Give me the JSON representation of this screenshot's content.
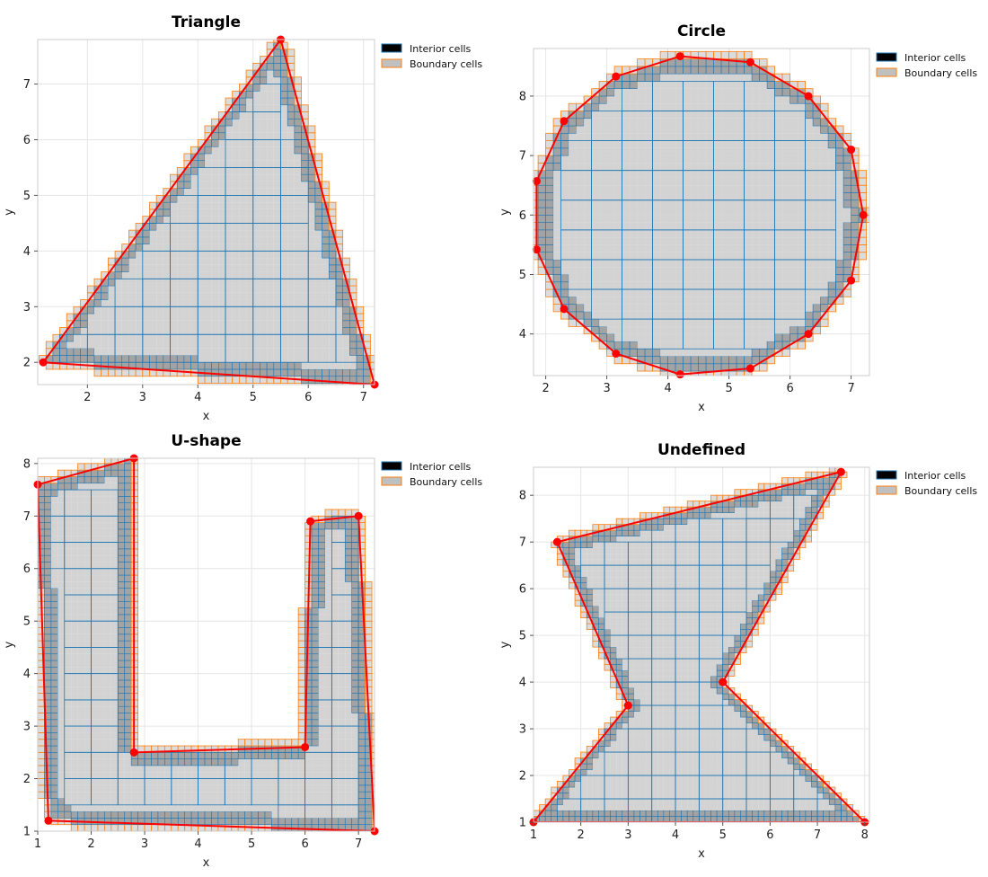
{
  "chart_data": [
    {
      "type": "scatter",
      "title": "Triangle",
      "xlabel": "x",
      "ylabel": "y",
      "xlim": [
        1.1,
        7.2
      ],
      "ylim": [
        1.6,
        7.8
      ],
      "xticks": [
        2,
        3,
        4,
        5,
        6,
        7
      ],
      "yticks": [
        2,
        3,
        4,
        5,
        6,
        7
      ],
      "grid": true,
      "legend": {
        "placement": "outside upper right",
        "entries": [
          "Interior cells",
          "Boundary cells"
        ]
      },
      "polygon": {
        "x": [
          1.2,
          5.5,
          7.2,
          1.2
        ],
        "y": [
          2.0,
          7.8,
          1.6,
          2.0
        ]
      }
    },
    {
      "type": "scatter",
      "title": "Circle",
      "xlabel": "x",
      "ylabel": "y",
      "xlim": [
        1.8,
        7.3
      ],
      "ylim": [
        3.3,
        8.8
      ],
      "xticks": [
        2,
        3,
        4,
        5,
        6,
        7
      ],
      "yticks": [
        4,
        5,
        6,
        7,
        8
      ],
      "grid": true,
      "legend": {
        "placement": "outside upper right",
        "entries": [
          "Interior cells",
          "Boundary cells"
        ]
      },
      "polygon": {
        "x": [
          7.2,
          7.0,
          6.3,
          5.35,
          4.2,
          3.15,
          2.3,
          1.85,
          1.85,
          2.3,
          3.15,
          4.2,
          5.35,
          6.3,
          7.0,
          7.2
        ],
        "y": [
          6.0,
          7.1,
          8.0,
          8.57,
          8.67,
          8.33,
          7.58,
          6.57,
          5.42,
          4.42,
          3.67,
          3.32,
          3.42,
          4.0,
          4.9,
          6.0
        ]
      }
    },
    {
      "type": "scatter",
      "title": "U-shape",
      "xlabel": "x",
      "ylabel": "y",
      "xlim": [
        1.0,
        7.3
      ],
      "ylim": [
        1.0,
        8.1
      ],
      "xticks": [
        1,
        2,
        3,
        4,
        5,
        6,
        7
      ],
      "yticks": [
        1,
        2,
        3,
        4,
        5,
        6,
        7,
        8
      ],
      "grid": true,
      "legend": {
        "placement": "outside upper right",
        "entries": [
          "Interior cells",
          "Boundary cells"
        ]
      },
      "polygon": {
        "x": [
          1.0,
          2.8,
          2.8,
          6.0,
          6.1,
          7.0,
          7.3,
          1.2,
          1.0
        ],
        "y": [
          7.6,
          8.1,
          2.5,
          2.6,
          6.9,
          7.0,
          1.0,
          1.2,
          7.6
        ]
      }
    },
    {
      "type": "scatter",
      "title": "Undefined",
      "xlabel": "x",
      "ylabel": "y",
      "xlim": [
        1.0,
        8.1
      ],
      "ylim": [
        1.0,
        8.6
      ],
      "xticks": [
        1,
        2,
        3,
        4,
        5,
        6,
        7,
        8
      ],
      "yticks": [
        1,
        2,
        3,
        4,
        5,
        6,
        7,
        8
      ],
      "grid": true,
      "legend": {
        "placement": "outside upper right",
        "entries": [
          "Interior cells",
          "Boundary cells"
        ]
      },
      "polygon": {
        "x": [
          1.0,
          8.0,
          5.0,
          7.5,
          1.5,
          3.0,
          1.0
        ],
        "y": [
          1.0,
          1.0,
          4.0,
          8.5,
          7.0,
          3.5,
          1.0
        ]
      }
    }
  ],
  "colors": {
    "polygon": "#ff0000",
    "vertex": "#ff0000",
    "interior_fine": "#a3a3a3",
    "interior_coarse": "#d3d3d3",
    "interior_edge": "#1f77b4",
    "boundary_fill": "#dcdcdc",
    "boundary_edge": "#ff7f0e",
    "legend_interior": "#000000",
    "legend_boundary": "#c0c0c0",
    "grid": "#e6e6e6"
  }
}
